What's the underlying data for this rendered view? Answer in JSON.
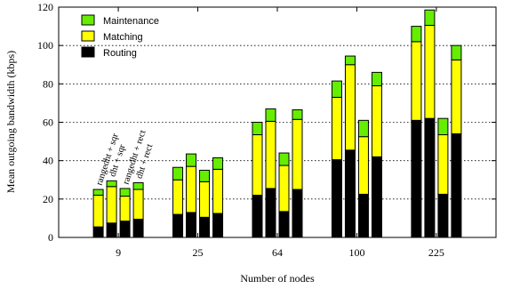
{
  "chart_data": {
    "type": "bar",
    "stacked": true,
    "title": "",
    "xlabel": "Number of nodes",
    "ylabel": "Mean outgoing bandwidth (kbps)",
    "ylim": [
      0,
      120
    ],
    "yticks": [
      0,
      20,
      40,
      60,
      80,
      100,
      120
    ],
    "grid": "horizontal dotted",
    "legend_position": "top-left",
    "categories": [
      "9",
      "25",
      "64",
      "100",
      "225"
    ],
    "variants": [
      "rangedht + sqr",
      "dht + sqr",
      "rangedht + rect",
      "dht + rect"
    ],
    "series": [
      {
        "name": "Routing",
        "color": "#000000",
        "values": [
          [
            5.5,
            7.5,
            8.5,
            9.5
          ],
          [
            12,
            13,
            10.5,
            12.5
          ],
          [
            22,
            25.5,
            13.5,
            25
          ],
          [
            40.5,
            45.5,
            22.5,
            42
          ],
          [
            61,
            62,
            22.5,
            54
          ]
        ]
      },
      {
        "name": "Matching",
        "color": "#ffff00",
        "values": [
          [
            16.5,
            19,
            13,
            15.5
          ],
          [
            18,
            24,
            18.5,
            23
          ],
          [
            31.5,
            35,
            24,
            36.5
          ],
          [
            32.5,
            44.5,
            30,
            37
          ],
          [
            41,
            48.5,
            31,
            38.5
          ]
        ]
      },
      {
        "name": "Maintenance",
        "color": "#66ee00",
        "values": [
          [
            3,
            3,
            4,
            3.5
          ],
          [
            6.5,
            6.5,
            6,
            6
          ],
          [
            6.5,
            6.5,
            6.5,
            5
          ],
          [
            8.5,
            4.5,
            8.5,
            7
          ],
          [
            8,
            8,
            8.5,
            7.5
          ]
        ]
      }
    ]
  }
}
